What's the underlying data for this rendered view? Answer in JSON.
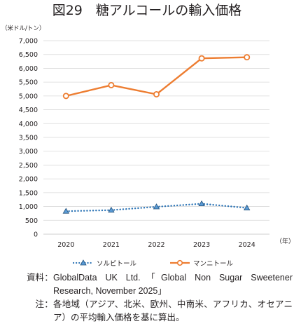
{
  "page": {
    "title": "図29　糖アルコールの輸入価格",
    "source_label": "資料",
    "source_text": "GlobalData UK Ltd.「Global Non Sugar Sweetener Research, November 2025」",
    "note_label": "注",
    "note_text": "各地域（アジア、北米、欧州、中南米、アフリカ、オセアニア）の平均輸入価格を基に算出。",
    "separator": "："
  },
  "chart_data": {
    "type": "line",
    "title": "図29　糖アルコールの輸入価格",
    "ylabel": "（米ドル/トン）",
    "xlabel": "（年）",
    "categories": [
      "2020",
      "2021",
      "2022",
      "2023",
      "2024"
    ],
    "y_ticks": [
      0,
      500,
      1000,
      1500,
      2000,
      2500,
      3000,
      3500,
      4000,
      4500,
      5000,
      5500,
      6000,
      6500,
      7000
    ],
    "y_tick_labels": [
      "0",
      "500",
      "1,000",
      "1,500",
      "2,000",
      "2,500",
      "3,000",
      "3,500",
      "4,000",
      "4,500",
      "5,000",
      "5,500",
      "6,000",
      "6,500",
      "7,000"
    ],
    "ylim": [
      0,
      7000
    ],
    "grid": true,
    "legend_position": "bottom",
    "series": [
      {
        "name": "ソルビトール",
        "values": [
          830,
          870,
          990,
          1100,
          950
        ],
        "color": "#2e75b6",
        "line_style": "dotted",
        "marker": "triangle"
      },
      {
        "name": "マンニトール",
        "values": [
          5000,
          5390,
          5060,
          6360,
          6400
        ],
        "color": "#ed7d31",
        "line_style": "solid",
        "marker": "circle"
      }
    ]
  }
}
